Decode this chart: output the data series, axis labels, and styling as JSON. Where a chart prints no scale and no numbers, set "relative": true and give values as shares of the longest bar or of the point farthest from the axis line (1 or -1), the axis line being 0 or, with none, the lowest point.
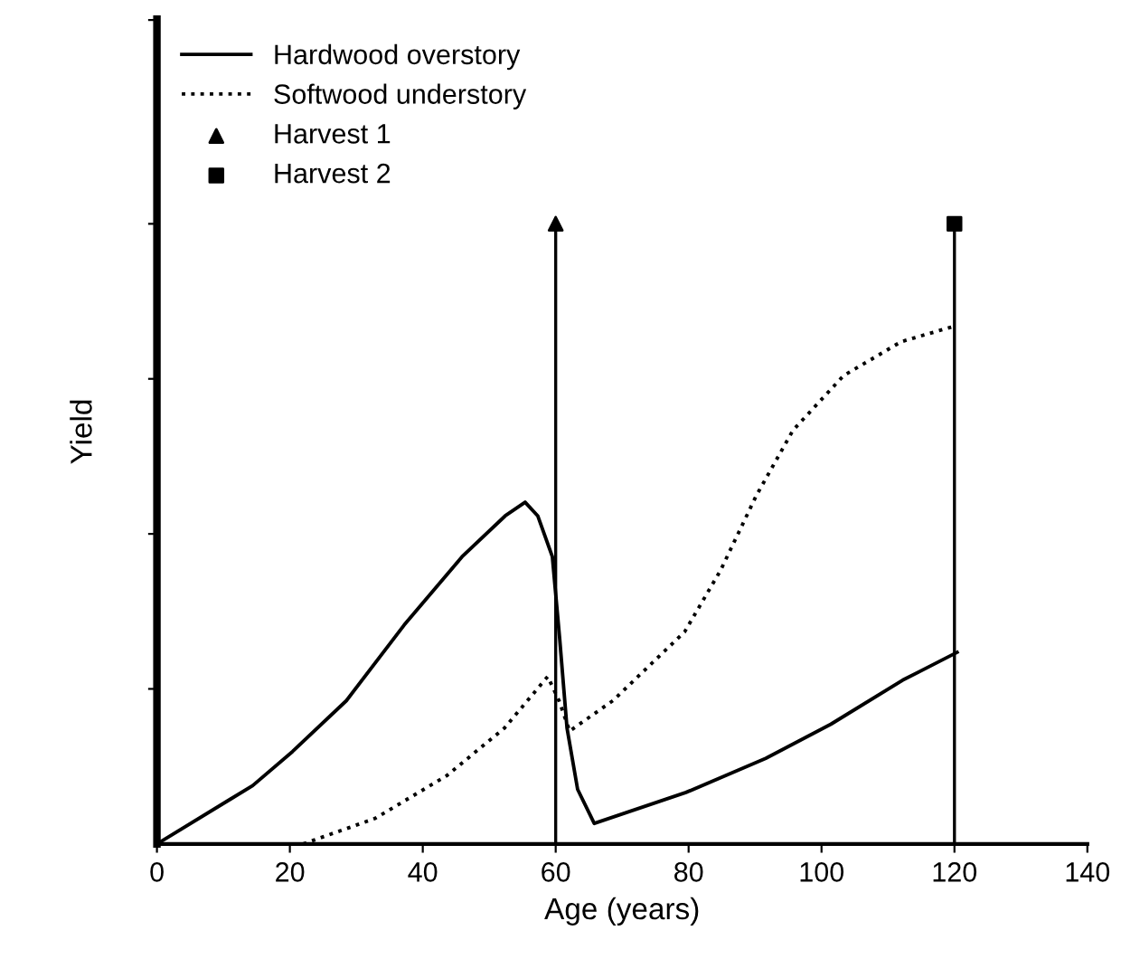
{
  "chart_data": {
    "type": "line",
    "xlabel": "Age (years)",
    "ylabel": "Yield",
    "relative": true,
    "xlim": [
      0,
      140
    ],
    "xticks": [
      0,
      20,
      40,
      60,
      80,
      100,
      120,
      140
    ],
    "tick_labels": "x",
    "legend": "top left",
    "grid": false,
    "series": [
      {
        "name": "Hardwood overstory",
        "color": "#000000",
        "line_style": "solid",
        "marker": "none",
        "x": [
          0,
          14.4,
          20.4,
          28.5,
          37.2,
          45.9,
          52.4,
          55.4,
          57.3,
          59.5,
          60.6,
          61.7,
          63.3,
          65.8,
          79.6,
          91.6,
          101.4,
          112.2,
          120.4
        ],
        "values": [
          0,
          0.094,
          0.149,
          0.231,
          0.353,
          0.463,
          0.529,
          0.551,
          0.529,
          0.463,
          0.331,
          0.187,
          0.088,
          0.033,
          0.083,
          0.138,
          0.193,
          0.264,
          0.309
        ]
      },
      {
        "name": "Softwood understory",
        "color": "#000000",
        "line_style": "dotted",
        "marker": "none",
        "x": [
          22,
          32.8,
          43.6,
          52.3,
          58.8,
          60.5,
          62.1,
          68.6,
          79.4,
          84.8,
          90.2,
          95.7,
          103.3,
          112,
          120
        ],
        "values": [
          0,
          0.041,
          0.11,
          0.187,
          0.27,
          0.231,
          0.182,
          0.231,
          0.342,
          0.441,
          0.562,
          0.667,
          0.755,
          0.81,
          0.835
        ]
      },
      {
        "name": "Harvest 1",
        "type": "scatter",
        "color": "#000000",
        "marker": "triangle",
        "x": [
          60
        ],
        "values": [
          1
        ]
      },
      {
        "name": "Harvest 2",
        "type": "scatter",
        "color": "#000000",
        "marker": "square",
        "x": [
          120
        ],
        "values": [
          1
        ]
      }
    ],
    "ref_lines": [
      {
        "axis": "x",
        "value": 60,
        "color": "#000000"
      },
      {
        "axis": "x",
        "value": 120,
        "color": "#000000"
      }
    ]
  }
}
